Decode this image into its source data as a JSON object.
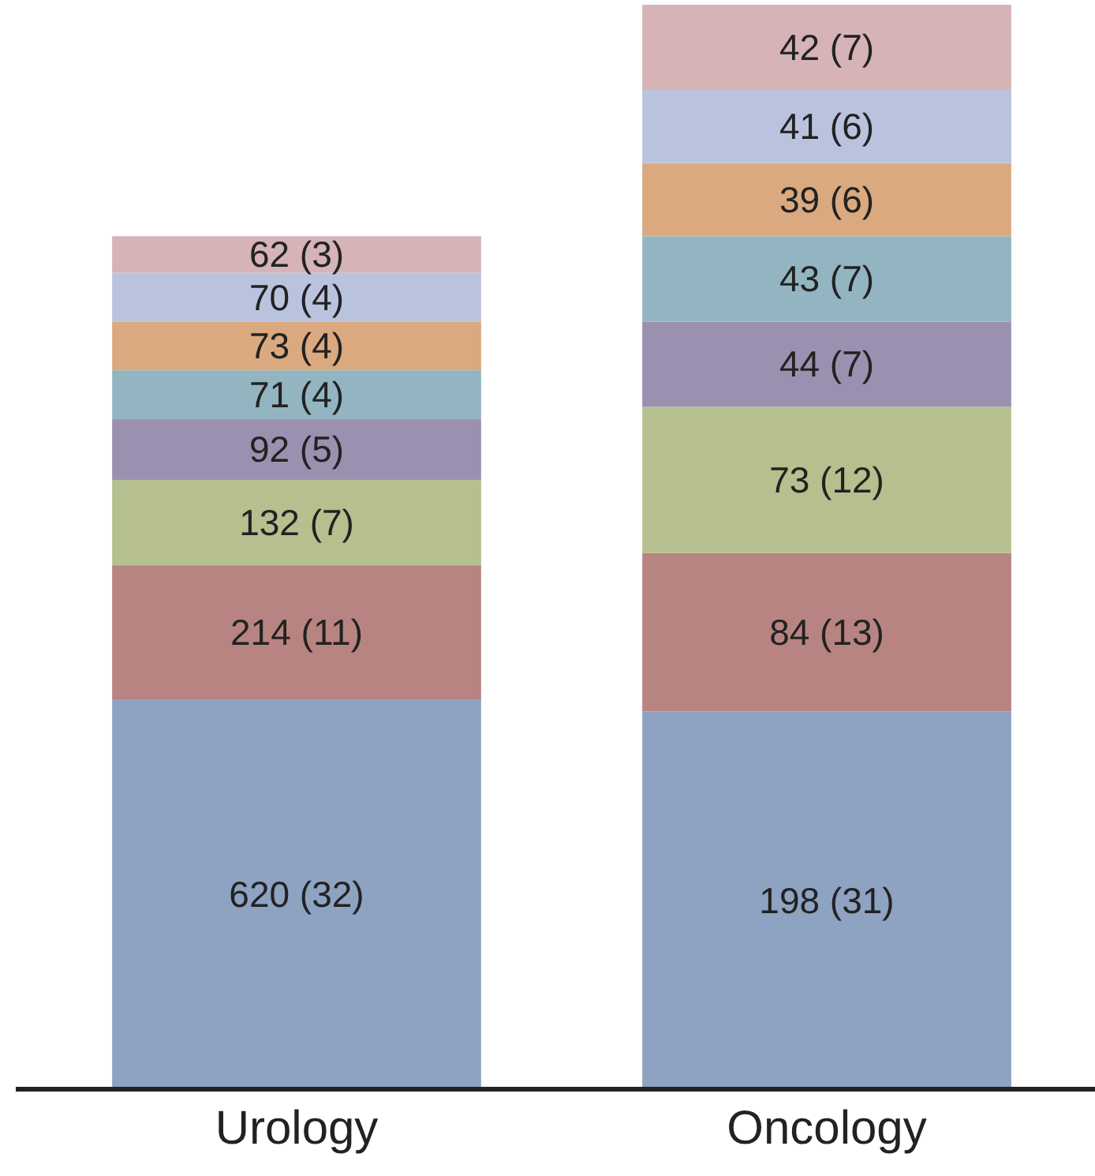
{
  "chart_data": {
    "type": "bar",
    "stacked": true,
    "categories": [
      "Urology",
      "Oncology"
    ],
    "series": [
      {
        "color": "#8ea2c2",
        "values": [
          32,
          31
        ],
        "value_labels": [
          "620 (32)",
          "198 (31)"
        ]
      },
      {
        "color": "#b88482",
        "values": [
          11,
          13
        ],
        "value_labels": [
          "214 (11)",
          "84 (13)"
        ]
      },
      {
        "color": "#b5c08e",
        "values": [
          7,
          12
        ],
        "value_labels": [
          "132 (7)",
          "73 (12)"
        ]
      },
      {
        "color": "#9c90b0",
        "values": [
          5,
          7
        ],
        "value_labels": [
          "92 (5)",
          "44 (7)"
        ]
      },
      {
        "color": "#93b5c2",
        "values": [
          4,
          7
        ],
        "value_labels": [
          "71 (4)",
          "43 (7)"
        ]
      },
      {
        "color": "#daa97f",
        "values": [
          4,
          6
        ],
        "value_labels": [
          "73 (4)",
          "39 (6)"
        ]
      },
      {
        "color": "#bac3de",
        "values": [
          4,
          6
        ],
        "value_labels": [
          "70 (4)",
          "41 (6)"
        ]
      },
      {
        "color": "#d5b3b7",
        "values": [
          3,
          7
        ],
        "value_labels": [
          "62 (3)",
          "42 (7)"
        ]
      }
    ],
    "tick_labels": "x"
  }
}
